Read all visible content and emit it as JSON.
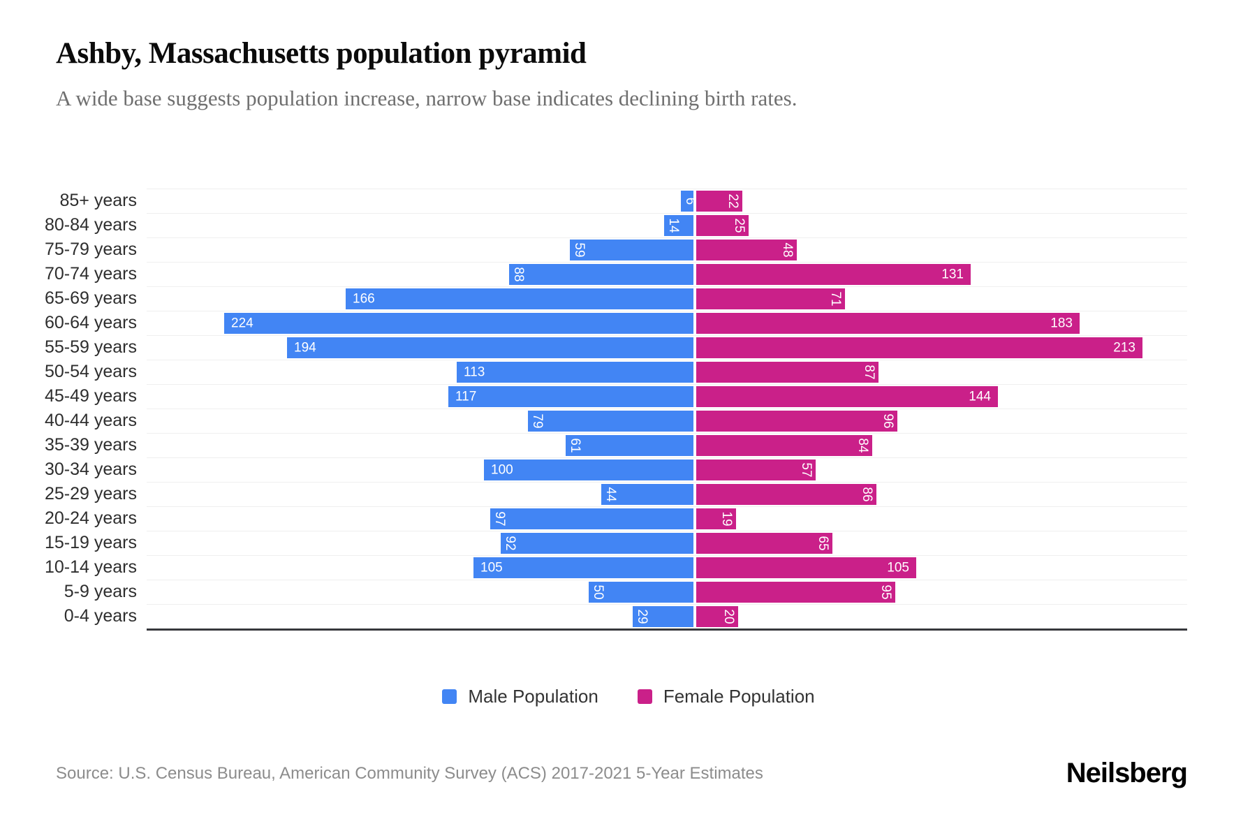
{
  "header": {
    "title": "Ashby, Massachusetts population pyramid",
    "subtitle": "A wide base suggests population increase, narrow base indicates declining birth rates."
  },
  "legend": {
    "male_label": "Male Population",
    "female_label": "Female Population"
  },
  "footer": {
    "source": "Source: U.S. Census Bureau, American Community Survey (ACS) 2017-2021 5-Year Estimates",
    "brand": "Neilsberg"
  },
  "colors": {
    "male": "#4285f4",
    "female": "#ca2089",
    "gridline": "#efefef",
    "axis": "#37383c"
  },
  "chart_data": {
    "type": "bar",
    "variant": "population-pyramid",
    "orientation": "horizontal",
    "title": "Ashby, Massachusetts population pyramid",
    "xlabel": "",
    "ylabel": "",
    "grid": "horizontal-only",
    "legend_position": "bottom",
    "value_labels": "inside bar end, white; rotated 90deg when value < 100",
    "xlim_units_each_side": [
      262,
      235
    ],
    "categories": [
      "85+ years",
      "80-84 years",
      "75-79 years",
      "70-74 years",
      "65-69 years",
      "60-64 years",
      "55-59 years",
      "50-54 years",
      "45-49 years",
      "40-44 years",
      "35-39 years",
      "30-34 years",
      "25-29 years",
      "20-24 years",
      "15-19 years",
      "10-14 years",
      "5-9 years",
      "0-4 years"
    ],
    "series": [
      {
        "name": "Male Population",
        "color": "#4285f4",
        "values": [
          6,
          14,
          59,
          88,
          166,
          224,
          194,
          113,
          117,
          79,
          61,
          100,
          44,
          97,
          92,
          105,
          50,
          29
        ]
      },
      {
        "name": "Female Population",
        "color": "#ca2089",
        "values": [
          22,
          25,
          48,
          131,
          71,
          183,
          213,
          87,
          144,
          96,
          84,
          57,
          86,
          19,
          65,
          105,
          95,
          20
        ]
      }
    ]
  }
}
